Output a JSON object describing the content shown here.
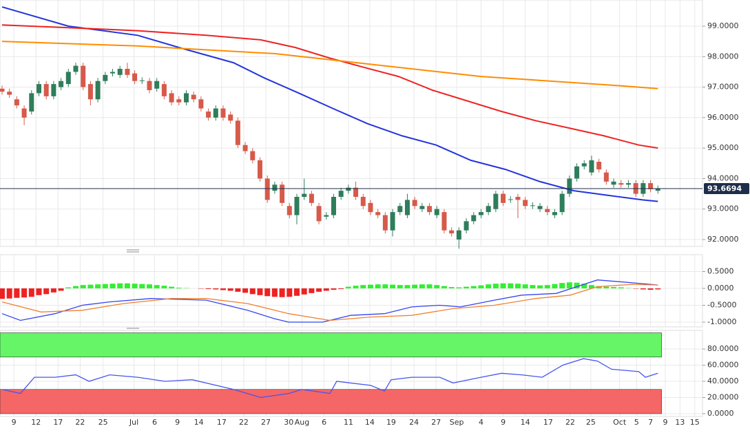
{
  "chart_data": [
    {
      "type": "candlestick",
      "up_color": "#2e7d5b",
      "down_color": "#d65a4a",
      "ylim": [
        91.774,
        99.858
      ],
      "yticks": [
        {
          "value": 92,
          "label": "92.0000"
        },
        {
          "value": 93,
          "label": "93.0000"
        },
        {
          "value": 94,
          "label": "94.0000"
        },
        {
          "value": 95,
          "label": "95.0000"
        },
        {
          "value": 96,
          "label": "96.0000"
        },
        {
          "value": 97,
          "label": "97.0000"
        },
        {
          "value": 98,
          "label": "98.0000"
        },
        {
          "value": 99,
          "label": "99.0000"
        }
      ],
      "last_price": 93.6694,
      "open": [
        96.95,
        96.85,
        96.6,
        96.3,
        96.2,
        96.8,
        97.1,
        96.7,
        97.0,
        97.1,
        97.5,
        97.7,
        97.1,
        96.6,
        97.2,
        97.45,
        97.4,
        97.6,
        97.45,
        97.2,
        97.2,
        96.95,
        97.1,
        96.8,
        96.6,
        96.5,
        96.75,
        96.6,
        96.2,
        96.0,
        96.3,
        96.1,
        95.9,
        95.1,
        94.9,
        94.6,
        94.0,
        93.6,
        93.8,
        93.1,
        92.8,
        93.4,
        93.5,
        93.1,
        92.75,
        92.8,
        93.4,
        93.6,
        93.7,
        93.4,
        93.2,
        92.9,
        92.8,
        92.3,
        92.9,
        92.8,
        93.3,
        93.0,
        93.1,
        92.8,
        92.9,
        92.3,
        92.0,
        92.3,
        92.6,
        92.8,
        92.9,
        93.0,
        93.5,
        93.3,
        93.4,
        93.3,
        93.1,
        93.0,
        93.0,
        92.8,
        92.9,
        93.5,
        94.0,
        94.4,
        94.2,
        94.55,
        94.2,
        93.8,
        93.85,
        93.8,
        93.85,
        93.5,
        93.85,
        93.6
      ],
      "high": [
        97.05,
        96.95,
        96.7,
        96.4,
        96.9,
        97.2,
        97.2,
        97.2,
        97.3,
        97.6,
        97.8,
        97.8,
        97.2,
        97.3,
        97.5,
        97.6,
        97.7,
        97.8,
        97.55,
        97.32,
        97.3,
        97.3,
        97.2,
        96.9,
        96.7,
        96.9,
        96.85,
        96.7,
        96.3,
        96.4,
        96.4,
        96.2,
        96.0,
        95.2,
        95.0,
        94.7,
        94.1,
        93.9,
        93.9,
        93.2,
        93.5,
        94.0,
        93.6,
        93.2,
        92.9,
        93.5,
        93.7,
        93.8,
        93.9,
        93.5,
        93.3,
        93.0,
        92.9,
        93.0,
        93.2,
        93.5,
        93.4,
        93.2,
        93.2,
        93.1,
        93.0,
        92.4,
        92.4,
        92.7,
        92.9,
        93.0,
        93.2,
        93.6,
        93.6,
        93.42,
        93.5,
        93.4,
        93.22,
        93.2,
        93.1,
        93.0,
        93.6,
        94.1,
        94.5,
        94.6,
        94.75,
        94.65,
        94.3,
        94.0,
        93.95,
        93.95,
        93.95,
        93.95,
        93.95,
        93.77
      ],
      "low": [
        96.75,
        96.65,
        96.3,
        95.75,
        96.1,
        96.7,
        96.6,
        96.6,
        96.9,
        97.0,
        97.4,
        96.9,
        96.4,
        96.5,
        97.1,
        97.35,
        97.3,
        97.3,
        97.1,
        97.1,
        96.8,
        96.85,
        96.6,
        96.4,
        96.4,
        96.4,
        96.5,
        96.2,
        95.9,
        95.9,
        95.9,
        95.8,
        95.0,
        94.8,
        94.5,
        93.9,
        93.2,
        93.5,
        93.1,
        92.7,
        92.5,
        93.3,
        93.1,
        92.5,
        92.65,
        92.7,
        93.3,
        93.5,
        93.3,
        93.0,
        92.8,
        92.7,
        92.2,
        92.1,
        92.8,
        92.7,
        93.0,
        92.9,
        92.8,
        92.7,
        92.2,
        92.1,
        91.7,
        92.2,
        92.5,
        92.7,
        92.8,
        92.9,
        93.1,
        93.2,
        92.7,
        93.0,
        93.0,
        92.9,
        92.8,
        92.7,
        92.8,
        93.4,
        93.9,
        94.3,
        94.1,
        94.2,
        93.8,
        93.7,
        93.7,
        93.7,
        93.4,
        93.4,
        93.55,
        93.5
      ],
      "close": [
        96.85,
        96.75,
        96.4,
        96.0,
        96.8,
        97.1,
        96.7,
        97.1,
        97.2,
        97.5,
        97.7,
        97.0,
        96.6,
        97.2,
        97.4,
        97.5,
        97.6,
        97.4,
        97.2,
        97.22,
        96.9,
        97.2,
        96.7,
        96.5,
        96.5,
        96.8,
        96.6,
        96.3,
        96.0,
        96.3,
        96.0,
        95.9,
        95.1,
        94.9,
        94.6,
        94.0,
        93.3,
        93.8,
        93.2,
        92.8,
        93.4,
        93.5,
        93.2,
        92.6,
        92.8,
        93.4,
        93.6,
        93.7,
        93.4,
        93.1,
        92.9,
        92.8,
        92.3,
        92.9,
        93.1,
        93.3,
        93.1,
        93.1,
        92.9,
        93.0,
        92.3,
        92.2,
        92.3,
        92.6,
        92.8,
        92.9,
        93.1,
        93.5,
        93.2,
        93.32,
        93.3,
        93.1,
        93.12,
        93.1,
        92.9,
        92.9,
        93.5,
        94.0,
        94.4,
        94.5,
        94.6,
        94.3,
        93.9,
        93.9,
        93.8,
        93.85,
        93.5,
        93.85,
        93.65,
        93.67
      ],
      "lines": [
        {
          "color": "#2233dd",
          "x": [
            0,
            9,
            18.4,
            24,
            31.4,
            35.6,
            40.3,
            44.9,
            49.6,
            54.3,
            58.9,
            63.6,
            68.3,
            73,
            77.6,
            82.2,
            86.9,
            89
          ],
          "values": [
            99.63,
            99.0,
            98.7,
            98.3,
            97.8,
            97.3,
            96.8,
            96.3,
            95.8,
            95.4,
            95.1,
            94.6,
            94.3,
            93.9,
            93.6,
            93.45,
            93.3,
            93.25
          ]
        },
        {
          "color": "#ee2222",
          "x": [
            0,
            9,
            18.4,
            27.7,
            35.1,
            39.8,
            44.5,
            49.1,
            53.8,
            58.4,
            63.1,
            67.8,
            72.4,
            77.1,
            81.7,
            86.4,
            89
          ],
          "values": [
            99.04,
            98.95,
            98.85,
            98.7,
            98.55,
            98.3,
            97.95,
            97.65,
            97.35,
            96.9,
            96.55,
            96.2,
            95.9,
            95.65,
            95.4,
            95.1,
            95.0
          ]
        },
        {
          "color": "#ff8c00",
          "x": [
            0,
            18.4,
            37,
            46.3,
            55.6,
            65,
            74.3,
            83.6,
            89
          ],
          "values": [
            98.5,
            98.35,
            98.1,
            97.85,
            97.6,
            97.35,
            97.2,
            97.05,
            96.95
          ]
        }
      ]
    },
    {
      "type": "macd",
      "up_color": "#33ee33",
      "down_color": "#ee2222",
      "ylim": [
        -1.143,
        1.0
      ],
      "yticks": [
        {
          "value": -1,
          "label": "-1.0000"
        },
        {
          "value": -0.5,
          "label": "-0.5000"
        },
        {
          "value": 0,
          "label": "0.0000"
        },
        {
          "value": 0.5,
          "label": "0.5000"
        }
      ],
      "histogram": [
        -0.31,
        -0.3,
        -0.28,
        -0.27,
        -0.25,
        -0.2,
        -0.17,
        -0.12,
        -0.07,
        0.03,
        0.07,
        0.1,
        0.11,
        0.12,
        0.13,
        0.14,
        0.15,
        0.15,
        0.14,
        0.13,
        0.12,
        0.1,
        0.08,
        0.05,
        0.02,
        0.01,
        0,
        -0.01,
        -0.02,
        -0.03,
        -0.05,
        -0.07,
        -0.1,
        -0.13,
        -0.17,
        -0.2,
        -0.23,
        -0.25,
        -0.26,
        -0.25,
        -0.22,
        -0.18,
        -0.14,
        -0.1,
        -0.07,
        -0.04,
        -0.02,
        0.05,
        0.08,
        0.1,
        0.11,
        0.12,
        0.12,
        0.11,
        0.1,
        0.1,
        0.11,
        0.12,
        0.12,
        0.1,
        0.07,
        0.04,
        0.03,
        0.05,
        0.07,
        0.09,
        0.12,
        0.14,
        0.15,
        0.15,
        0.14,
        0.12,
        0.1,
        0.09,
        0.1,
        0.13,
        0.16,
        0.18,
        0.17,
        0.14,
        0.1,
        0.07,
        0.05,
        0.04,
        0.03,
        0.01,
        -0.01,
        -0.03,
        -0.04,
        -0.03
      ],
      "lines": [
        {
          "color": "#3344ee",
          "x": [
            0,
            2.5,
            7.2,
            10.9,
            14.6,
            20.2,
            27.7,
            33.3,
            37,
            38.9,
            43.5,
            47.3,
            51.9,
            55.6,
            59.4,
            62.2,
            66.8,
            70.5,
            75.2,
            78,
            80.8,
            86.4,
            89
          ],
          "values": [
            -0.75,
            -0.95,
            -0.75,
            -0.5,
            -0.4,
            -0.3,
            -0.35,
            -0.65,
            -0.9,
            -1.0,
            -1.0,
            -0.8,
            -0.75,
            -0.55,
            -0.5,
            -0.55,
            -0.35,
            -0.2,
            -0.15,
            0.05,
            0.25,
            0.15,
            0.1
          ]
        },
        {
          "color": "#f08030",
          "x": [
            0,
            5.3,
            10.9,
            16.5,
            23,
            27.7,
            33.3,
            38.9,
            44.5,
            50,
            55.6,
            61.2,
            66.8,
            72.4,
            77.1,
            80.8,
            85.5,
            89
          ],
          "values": [
            -0.4,
            -0.7,
            -0.65,
            -0.45,
            -0.3,
            -0.3,
            -0.45,
            -0.75,
            -0.95,
            -0.85,
            -0.8,
            -0.6,
            -0.5,
            -0.3,
            -0.2,
            0.05,
            0.12,
            0.1
          ]
        }
      ]
    },
    {
      "type": "rsi",
      "ylim": [
        -3.4,
        103
      ],
      "yticks": [
        {
          "value": 0,
          "label": "0.0000"
        },
        {
          "value": 20,
          "label": "20.0000"
        },
        {
          "value": 40,
          "label": "40.0000"
        },
        {
          "value": 60,
          "label": "60.0000"
        },
        {
          "value": 80,
          "label": "80.0000"
        }
      ],
      "bands": [
        {
          "from": 70,
          "to": 100,
          "color": "#66f566"
        },
        {
          "from": 0,
          "to": 30,
          "color": "#f56666"
        }
      ],
      "band_end": 89.5,
      "lines": [
        {
          "color": "#4455ee",
          "x": [
            0,
            2.5,
            4.4,
            7.2,
            10,
            11.8,
            14.6,
            18.4,
            22.1,
            25.8,
            31.4,
            35.1,
            38.9,
            40.7,
            44.5,
            45.4,
            50,
            51.9,
            52.8,
            55.6,
            59.4,
            61.2,
            65,
            67.8,
            70.5,
            73.3,
            76.1,
            78.9,
            80.8,
            82.7,
            86.4,
            87.3,
            89
          ],
          "values": [
            30,
            25,
            45,
            45,
            48,
            40,
            48,
            45,
            40,
            42,
            30,
            20,
            25,
            30,
            25,
            40,
            35,
            28,
            42,
            45,
            45,
            38,
            45,
            50,
            48,
            45,
            60,
            68,
            65,
            55,
            52,
            45,
            50
          ]
        }
      ],
      "xlim": [
        -0.28,
        95.05
      ],
      "xticks": [
        {
          "value": 1.6,
          "label": "9"
        },
        {
          "value": 4.6,
          "label": "12"
        },
        {
          "value": 7.6,
          "label": "17"
        },
        {
          "value": 10.6,
          "label": "22"
        },
        {
          "value": 13.7,
          "label": "25"
        },
        {
          "value": 17.9,
          "label": "Jul"
        },
        {
          "value": 20.7,
          "label": "6"
        },
        {
          "value": 23.8,
          "label": "9"
        },
        {
          "value": 26.7,
          "label": "14"
        },
        {
          "value": 29.8,
          "label": "17"
        },
        {
          "value": 32.8,
          "label": "22"
        },
        {
          "value": 35.8,
          "label": "27"
        },
        {
          "value": 38.9,
          "label": "30"
        },
        {
          "value": 40.7,
          "label": "Aug"
        },
        {
          "value": 43.7,
          "label": "6"
        },
        {
          "value": 47,
          "label": "11"
        },
        {
          "value": 49.9,
          "label": "14"
        },
        {
          "value": 52.8,
          "label": "19"
        },
        {
          "value": 55.9,
          "label": "24"
        },
        {
          "value": 58.9,
          "label": "27"
        },
        {
          "value": 61.7,
          "label": "Sep"
        },
        {
          "value": 65,
          "label": "4"
        },
        {
          "value": 68,
          "label": "9"
        },
        {
          "value": 71,
          "label": "14"
        },
        {
          "value": 74.1,
          "label": "17"
        },
        {
          "value": 77.1,
          "label": "22"
        },
        {
          "value": 79.9,
          "label": "25"
        },
        {
          "value": 83.8,
          "label": "Oct"
        },
        {
          "value": 86.1,
          "label": "5"
        },
        {
          "value": 88,
          "label": "7"
        },
        {
          "value": 90,
          "label": "9"
        },
        {
          "value": 92,
          "label": "13"
        },
        {
          "value": 94,
          "label": "15"
        }
      ]
    }
  ]
}
